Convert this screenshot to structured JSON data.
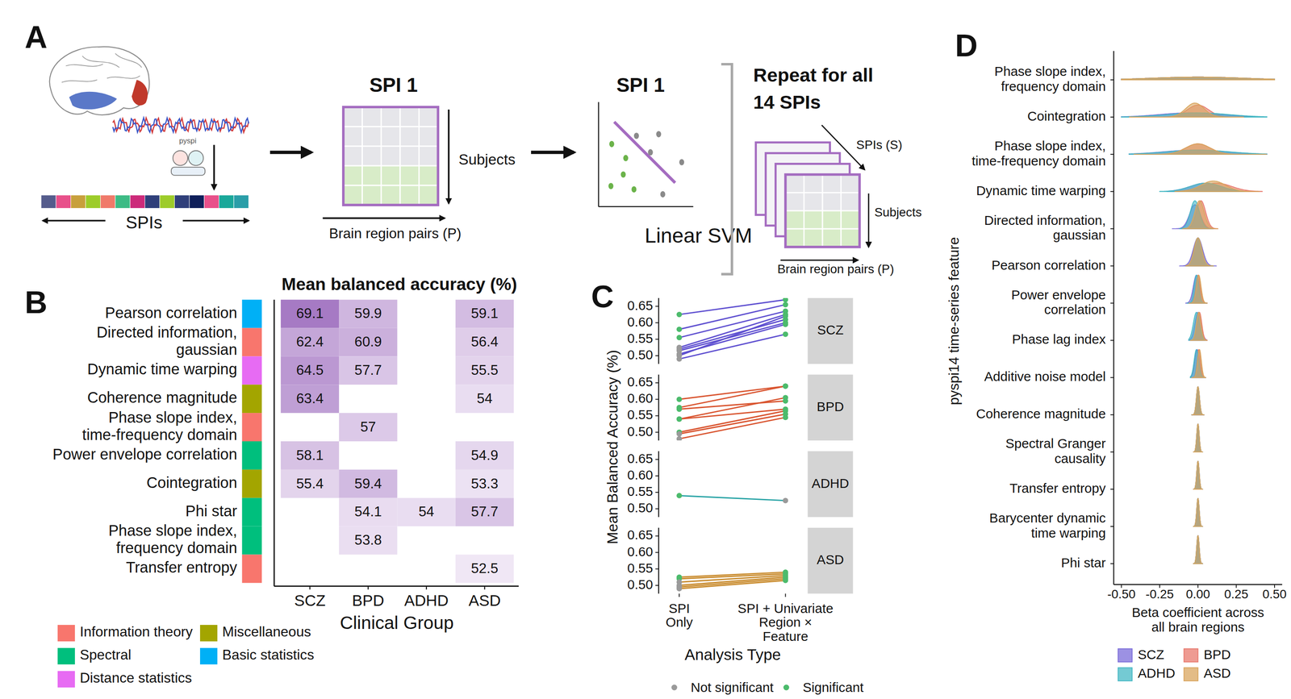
{
  "panel_labels": [
    "A",
    "B",
    "C",
    "D"
  ],
  "diagram": {
    "pyspi": "pyspi",
    "spis_axis": "SPIs",
    "matrix_title": "SPI 1",
    "subjects": "Subjects",
    "pairs": "Brain region pairs (P)",
    "svm_title": "SPI 1",
    "svm": "Linear SVM",
    "repeat": "Repeat for all\n14 SPIs",
    "stack_spis": "SPIs  (S)",
    "stack_subjects": "Subjects",
    "stack_pairs": "Brain region pairs (P)"
  },
  "chart_data": [
    {
      "type": "heatmap",
      "title": "Mean balanced accuracy (%)",
      "x_label": "Clinical Group",
      "categories": [
        "SCZ",
        "BPD",
        "ADHD",
        "ASD"
      ],
      "rows": [
        "Pearson correlation",
        "Directed information,\ngaussian",
        "Dynamic time warping",
        "Coherence magnitude",
        "Phase slope index,\ntime-frequency domain",
        "Power envelope correlation",
        "Cointegration",
        "Phi star",
        "Phase slope index,\nfrequency domain",
        "Transfer entropy"
      ],
      "row_groups": [
        "Basic statistics",
        "Information theory",
        "Distance statistics",
        "Miscellaneous",
        "Information theory",
        "Spectral",
        "Miscellaneous",
        "Spectral",
        "Spectral",
        "Information theory"
      ],
      "group_legend": [
        {
          "name": "Information theory",
          "color": "#F8766D"
        },
        {
          "name": "Spectral",
          "color": "#00BF7D"
        },
        {
          "name": "Distance statistics",
          "color": "#E76BF3"
        },
        {
          "name": "Miscellaneous",
          "color": "#A3A500"
        },
        {
          "name": "Basic statistics",
          "color": "#00B0F6"
        }
      ],
      "cells": [
        [
          69.1,
          59.9,
          null,
          59.1
        ],
        [
          62.4,
          60.9,
          null,
          56.4
        ],
        [
          64.5,
          57.7,
          null,
          55.5
        ],
        [
          63.4,
          null,
          null,
          54
        ],
        [
          null,
          57,
          null,
          null
        ],
        [
          58.1,
          null,
          null,
          54.9
        ],
        [
          55.4,
          59.4,
          null,
          53.3
        ],
        [
          null,
          54.1,
          54,
          57.7
        ],
        [
          null,
          53.8,
          null,
          null
        ],
        [
          null,
          null,
          null,
          52.5
        ]
      ],
      "data_labels": true
    },
    {
      "type": "slope",
      "y_label": "Mean Balanced Accuracy (%)",
      "x_label": "Analysis Type",
      "categories": [
        "SPI\nOnly",
        "SPI + Univariate\nRegion ×\nFeature"
      ],
      "ylim": [
        0.475,
        0.675
      ],
      "yticks": [
        {
          "value": 0.5,
          "label": "0.50"
        },
        0.55,
        {
          "value": 0.6,
          "label": "0.60"
        },
        0.65
      ],
      "status_legend": [
        {
          "name": "Not significant",
          "color": "#9a9a9a"
        },
        {
          "name": "Significant",
          "color": "#4CBB6C"
        }
      ],
      "facets": [
        {
          "name": "SCZ",
          "color": "#5E4FD0",
          "lines": [
            {
              "values": [
                0.625,
                0.67
              ],
              "significant": [
                true,
                true
              ]
            },
            {
              "values": [
                0.58,
                0.655
              ],
              "significant": [
                true,
                true
              ]
            },
            {
              "values": [
                0.555,
                0.635
              ],
              "significant": [
                true,
                true
              ]
            },
            {
              "values": [
                0.525,
                0.625
              ],
              "significant": [
                false,
                true
              ]
            },
            {
              "values": [
                0.52,
                0.61
              ],
              "significant": [
                false,
                true
              ]
            },
            {
              "values": [
                0.515,
                0.6
              ],
              "significant": [
                false,
                true
              ]
            },
            {
              "values": [
                0.505,
                0.595
              ],
              "significant": [
                false,
                true
              ]
            },
            {
              "values": [
                0.5,
                0.62
              ],
              "significant": [
                false,
                true
              ]
            },
            {
              "values": [
                0.49,
                0.565
              ],
              "significant": [
                false,
                true
              ]
            }
          ]
        },
        {
          "name": "BPD",
          "color": "#D9542F",
          "lines": [
            {
              "values": [
                0.6,
                0.64
              ],
              "significant": [
                true,
                true
              ]
            },
            {
              "values": [
                0.575,
                0.64
              ],
              "significant": [
                true,
                true
              ]
            },
            {
              "values": [
                0.57,
                0.595
              ],
              "significant": [
                true,
                true
              ]
            },
            {
              "values": [
                0.54,
                0.605
              ],
              "significant": [
                true,
                true
              ]
            },
            {
              "values": [
                0.54,
                0.57
              ],
              "significant": [
                true,
                true
              ]
            },
            {
              "values": [
                0.5,
                0.565
              ],
              "significant": [
                true,
                true
              ]
            },
            {
              "values": [
                0.495,
                0.555
              ],
              "significant": [
                false,
                true
              ]
            },
            {
              "values": [
                0.48,
                0.545
              ],
              "significant": [
                false,
                true
              ]
            }
          ]
        },
        {
          "name": "ADHD",
          "color": "#27A3A5",
          "lines": [
            {
              "values": [
                0.54,
                0.525
              ],
              "significant": [
                true,
                false
              ]
            }
          ]
        },
        {
          "name": "ASD",
          "color": "#C98B2D",
          "lines": [
            {
              "values": [
                0.525,
                0.54
              ],
              "significant": [
                true,
                true
              ]
            },
            {
              "values": [
                0.52,
                0.535
              ],
              "significant": [
                true,
                true
              ]
            },
            {
              "values": [
                0.51,
                0.53
              ],
              "significant": [
                false,
                true
              ]
            },
            {
              "values": [
                0.5,
                0.525
              ],
              "significant": [
                false,
                true
              ]
            },
            {
              "values": [
                0.495,
                0.52
              ],
              "significant": [
                false,
                true
              ]
            },
            {
              "values": [
                0.49,
                0.515
              ],
              "significant": [
                false,
                true
              ]
            }
          ]
        }
      ]
    },
    {
      "type": "ridgeline",
      "y_label": "pyspi14 time-series feature",
      "x_label": "Beta coefficient across\nall brain regions",
      "xlim": [
        -0.55,
        0.55
      ],
      "xticks": [
        {
          "value": -0.5,
          "label": "-0.50"
        },
        {
          "value": -0.25,
          "label": "-0.25"
        },
        {
          "value": 0,
          "label": "0.00"
        },
        {
          "value": 0.25,
          "label": "0.25"
        },
        {
          "value": 0.5,
          "label": "0.50"
        }
      ],
      "categories": [
        "Phase slope index,\nfrequency domain",
        "Cointegration",
        "Phase slope index,\ntime-frequency domain",
        "Dynamic time warping",
        "Directed information,\ngaussian",
        "Pearson correlation",
        "Power envelope\ncorrelation",
        "Phase lag index",
        "Additive noise model",
        "Coherence magnitude",
        "Spectral Granger\ncausality",
        "Transfer entropy",
        "Barycenter dynamic\ntime warping",
        "Phi star"
      ],
      "series": [
        {
          "name": "SCZ",
          "color": "#7B6CD9",
          "center": [
            0,
            -0.05,
            -0.02,
            0.05,
            -0.02,
            0,
            -0.01,
            0,
            -0.005,
            0,
            0,
            0,
            0,
            0
          ],
          "spread": [
            0.3,
            0.2,
            0.2,
            0.1,
            0.035,
            0.03,
            0.02,
            0.02,
            0.015,
            0.01,
            0.008,
            0.008,
            0.008,
            0.008
          ],
          "min": [
            -0.5,
            -0.5,
            -0.45,
            -0.2,
            -0.17,
            -0.12,
            -0.08,
            -0.06,
            -0.05,
            -0.04,
            -0.03,
            -0.03,
            -0.03,
            -0.03
          ],
          "max": [
            0.5,
            0.4,
            0.45,
            0.3,
            0.1,
            0.12,
            0.06,
            0.06,
            0.05,
            0.04,
            0.03,
            0.03,
            0.03,
            0.03
          ]
        },
        {
          "name": "BPD",
          "color": "#E87A6E",
          "center": [
            0,
            0,
            0,
            0.12,
            0.02,
            0,
            0,
            0.01,
            0.005,
            0,
            0,
            0,
            0,
            0
          ],
          "spread": [
            0.3,
            0.07,
            0.08,
            0.1,
            0.03,
            0.025,
            0.015,
            0.015,
            0.012,
            0.01,
            0.008,
            0.008,
            0.008,
            0.008
          ],
          "min": [
            -0.5,
            -0.45,
            -0.42,
            -0.15,
            -0.1,
            -0.08,
            -0.06,
            -0.05,
            -0.04,
            -0.04,
            -0.03,
            -0.03,
            -0.03,
            -0.03
          ],
          "max": [
            0.5,
            0.35,
            0.45,
            0.42,
            0.13,
            0.1,
            0.06,
            0.06,
            0.05,
            0.04,
            0.03,
            0.03,
            0.03,
            0.03
          ]
        },
        {
          "name": "ADHD",
          "color": "#45B8C4",
          "center": [
            0,
            0,
            0,
            0.05,
            -0.02,
            0,
            -0.01,
            -0.01,
            -0.01,
            0,
            0,
            0,
            0,
            0
          ],
          "spread": [
            0.3,
            0.2,
            0.2,
            0.1,
            0.03,
            0.025,
            0.015,
            0.02,
            0.015,
            0.01,
            0.008,
            0.008,
            0.008,
            0.008
          ],
          "min": [
            -0.5,
            -0.5,
            -0.45,
            -0.25,
            -0.12,
            -0.08,
            -0.07,
            -0.06,
            -0.05,
            -0.04,
            -0.03,
            -0.03,
            -0.03,
            -0.03
          ],
          "max": [
            0.5,
            0.45,
            0.45,
            0.3,
            0.1,
            0.1,
            0.06,
            0.05,
            0.05,
            0.04,
            0.03,
            0.03,
            0.03,
            0.03
          ]
        },
        {
          "name": "ASD",
          "color": "#D9A55E",
          "center": [
            0,
            -0.02,
            0,
            0.1,
            0.01,
            0,
            0.005,
            0.005,
            0.01,
            0,
            0,
            0,
            0,
            0
          ],
          "spread": [
            0.3,
            0.06,
            0.08,
            0.08,
            0.03,
            0.025,
            0.015,
            0.015,
            0.012,
            0.01,
            0.008,
            0.008,
            0.008,
            0.008
          ],
          "min": [
            -0.5,
            -0.45,
            -0.42,
            -0.15,
            -0.1,
            -0.08,
            -0.06,
            -0.05,
            -0.04,
            -0.04,
            -0.03,
            -0.03,
            -0.03,
            -0.03
          ],
          "max": [
            0.5,
            0.3,
            0.45,
            0.4,
            0.13,
            0.1,
            0.06,
            0.06,
            0.05,
            0.04,
            0.03,
            0.03,
            0.03,
            0.03
          ]
        }
      ]
    }
  ]
}
